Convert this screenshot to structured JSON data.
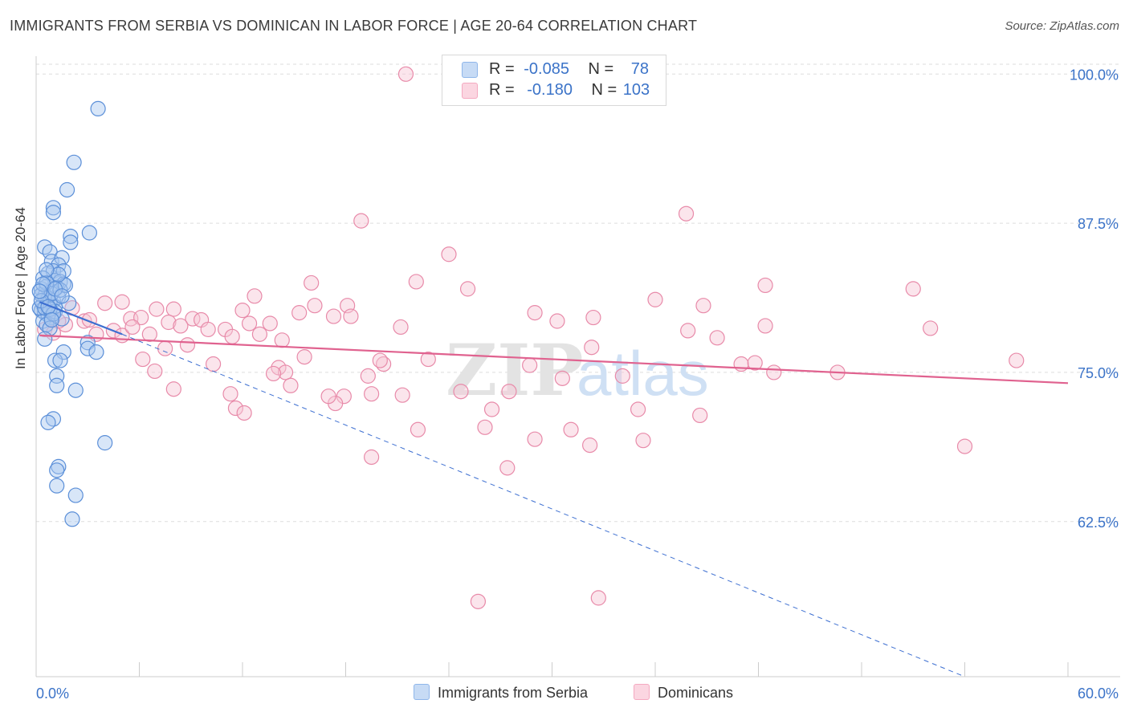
{
  "title": "IMMIGRANTS FROM SERBIA VS DOMINICAN IN LABOR FORCE | AGE 20-64 CORRELATION CHART",
  "source": "Source: ZipAtlas.com",
  "watermark": {
    "zip": "ZIP",
    "atlas": "atlas"
  },
  "legend": {
    "rows": [
      {
        "r_label": "R =",
        "r_value": "-0.085",
        "n_label": "N =",
        "n_value": "78",
        "color": "#8fb6ea"
      },
      {
        "r_label": "R =",
        "r_value": "-0.180",
        "n_label": "N =",
        "n_value": "103",
        "color": "#f4a9c0"
      }
    ]
  },
  "bottom_legend": {
    "serbia": "Immigrants from Serbia",
    "dominicans": "Dominicans"
  },
  "colors": {
    "serbia_fill": "#a9c8f0",
    "serbia_stroke": "#5b8fd8",
    "serbia_line": "#3d6fd1",
    "dominican_fill": "#f7c5d5",
    "dominican_stroke": "#e88aa9",
    "dominican_line": "#e0628f",
    "axis_label": "#3b73c8",
    "grid": "#dddddd"
  },
  "chart_data": {
    "type": "scatter",
    "title": "IMMIGRANTS FROM SERBIA VS DOMINICAN IN LABOR FORCE | AGE 20-64 CORRELATION CHART",
    "xlabel": "",
    "ylabel": "In Labor Force | Age 20-64",
    "xlim": [
      0,
      60
    ],
    "ylim": [
      49.5,
      101.5
    ],
    "x_tick_labels": [
      "0.0%",
      "60.0%"
    ],
    "y_ticks": [
      62.5,
      75.0,
      87.5,
      100.0
    ],
    "y_tick_labels": [
      "62.5%",
      "75.0%",
      "87.5%",
      "100.0%"
    ],
    "series": [
      {
        "name": "Immigrants from Serbia",
        "R": -0.085,
        "N": 78,
        "trend_solid": [
          [
            0.2,
            80.9
          ],
          [
            5.0,
            78.2
          ]
        ],
        "trend_dashed": [
          [
            5.0,
            78.2
          ],
          [
            54.0,
            49.5
          ]
        ],
        "points": [
          [
            3.6,
            97.1
          ],
          [
            2.2,
            92.6
          ],
          [
            1.8,
            90.3
          ],
          [
            1.0,
            88.8
          ],
          [
            1.0,
            88.4
          ],
          [
            3.1,
            86.7
          ],
          [
            2.0,
            86.4
          ],
          [
            2.0,
            85.9
          ],
          [
            0.5,
            85.5
          ],
          [
            0.8,
            85.1
          ],
          [
            0.9,
            84.3
          ],
          [
            1.5,
            84.6
          ],
          [
            1.3,
            84.0
          ],
          [
            0.7,
            83.3
          ],
          [
            1.0,
            83.5
          ],
          [
            1.6,
            83.5
          ],
          [
            0.4,
            82.9
          ],
          [
            1.1,
            82.7
          ],
          [
            1.4,
            82.6
          ],
          [
            1.6,
            82.4
          ],
          [
            0.3,
            82.0
          ],
          [
            0.6,
            82.2
          ],
          [
            0.9,
            81.8
          ],
          [
            1.2,
            82.1
          ],
          [
            0.5,
            81.4
          ],
          [
            0.7,
            81.2
          ],
          [
            1.0,
            81.0
          ],
          [
            1.3,
            81.3
          ],
          [
            0.4,
            80.7
          ],
          [
            0.6,
            80.6
          ],
          [
            0.8,
            80.9
          ],
          [
            1.1,
            80.5
          ],
          [
            0.3,
            80.2
          ],
          [
            0.5,
            80.0
          ],
          [
            0.7,
            79.8
          ],
          [
            0.9,
            79.6
          ],
          [
            1.1,
            80.1
          ],
          [
            0.4,
            79.3
          ],
          [
            0.6,
            79.0
          ],
          [
            0.8,
            78.7
          ],
          [
            1.9,
            80.8
          ],
          [
            1.5,
            79.5
          ],
          [
            0.5,
            77.8
          ],
          [
            3.0,
            77.5
          ],
          [
            3.0,
            77.0
          ],
          [
            1.6,
            76.7
          ],
          [
            3.5,
            76.7
          ],
          [
            1.1,
            76.0
          ],
          [
            1.4,
            76.0
          ],
          [
            1.2,
            74.7
          ],
          [
            1.2,
            73.9
          ],
          [
            2.3,
            73.5
          ],
          [
            1.0,
            71.1
          ],
          [
            0.7,
            70.8
          ],
          [
            4.0,
            69.1
          ],
          [
            1.3,
            67.1
          ],
          [
            1.2,
            66.8
          ],
          [
            1.2,
            65.5
          ],
          [
            2.3,
            64.7
          ],
          [
            2.1,
            62.7
          ],
          [
            0.3,
            81.5
          ],
          [
            0.6,
            82.5
          ],
          [
            0.2,
            80.4
          ],
          [
            0.9,
            81.6
          ],
          [
            1.4,
            81.9
          ],
          [
            0.5,
            80.4
          ],
          [
            1.7,
            82.3
          ],
          [
            0.8,
            80.3
          ],
          [
            1.0,
            79.9
          ],
          [
            0.4,
            82.4
          ],
          [
            1.3,
            83.2
          ],
          [
            0.6,
            83.6
          ],
          [
            1.1,
            82.0
          ],
          [
            0.3,
            81.0
          ],
          [
            0.7,
            80.5
          ],
          [
            1.5,
            81.4
          ],
          [
            0.9,
            79.4
          ],
          [
            0.2,
            81.8
          ]
        ]
      },
      {
        "name": "Dominicans",
        "R": -0.18,
        "N": 103,
        "trend_solid": [
          [
            0.2,
            78.1
          ],
          [
            60.0,
            74.1
          ]
        ],
        "points": [
          [
            21.5,
            100.0
          ],
          [
            37.8,
            88.3
          ],
          [
            18.9,
            87.7
          ],
          [
            24.0,
            84.9
          ],
          [
            16.0,
            82.5
          ],
          [
            22.1,
            82.6
          ],
          [
            25.1,
            82.0
          ],
          [
            42.4,
            82.3
          ],
          [
            51.0,
            82.0
          ],
          [
            12.7,
            81.4
          ],
          [
            36.0,
            81.1
          ],
          [
            2.1,
            80.4
          ],
          [
            4.0,
            80.8
          ],
          [
            5.0,
            80.9
          ],
          [
            7.0,
            80.3
          ],
          [
            8.0,
            80.3
          ],
          [
            15.3,
            80.0
          ],
          [
            16.2,
            80.6
          ],
          [
            17.3,
            79.7
          ],
          [
            18.1,
            80.6
          ],
          [
            18.3,
            79.7
          ],
          [
            29.0,
            80.0
          ],
          [
            38.8,
            80.6
          ],
          [
            2.8,
            79.3
          ],
          [
            5.5,
            79.5
          ],
          [
            6.1,
            79.6
          ],
          [
            7.7,
            79.2
          ],
          [
            9.1,
            79.5
          ],
          [
            9.6,
            79.4
          ],
          [
            12.4,
            79.1
          ],
          [
            13.6,
            79.1
          ],
          [
            21.2,
            78.8
          ],
          [
            30.3,
            79.3
          ],
          [
            32.4,
            79.6
          ],
          [
            42.4,
            78.9
          ],
          [
            52.0,
            78.7
          ],
          [
            0.5,
            78.6
          ],
          [
            1.7,
            79.0
          ],
          [
            3.5,
            78.2
          ],
          [
            4.5,
            78.5
          ],
          [
            5.0,
            78.1
          ],
          [
            5.6,
            78.8
          ],
          [
            8.4,
            78.9
          ],
          [
            10.0,
            78.6
          ],
          [
            11.0,
            78.6
          ],
          [
            11.4,
            78.0
          ],
          [
            13.0,
            78.2
          ],
          [
            14.3,
            77.7
          ],
          [
            7.5,
            77.0
          ],
          [
            8.8,
            77.3
          ],
          [
            15.6,
            76.3
          ],
          [
            32.3,
            77.1
          ],
          [
            39.6,
            77.9
          ],
          [
            37.9,
            78.5
          ],
          [
            6.2,
            76.1
          ],
          [
            10.3,
            75.7
          ],
          [
            14.1,
            75.4
          ],
          [
            14.5,
            75.0
          ],
          [
            20.2,
            75.7
          ],
          [
            22.8,
            76.1
          ],
          [
            28.7,
            75.6
          ],
          [
            41.0,
            75.7
          ],
          [
            41.8,
            75.8
          ],
          [
            42.9,
            75.0
          ],
          [
            46.6,
            75.0
          ],
          [
            57.0,
            76.0
          ],
          [
            6.9,
            75.1
          ],
          [
            13.8,
            74.9
          ],
          [
            19.3,
            74.7
          ],
          [
            30.6,
            74.5
          ],
          [
            34.1,
            74.7
          ],
          [
            8.0,
            73.6
          ],
          [
            11.3,
            73.2
          ],
          [
            14.8,
            73.9
          ],
          [
            17.9,
            73.0
          ],
          [
            19.5,
            73.2
          ],
          [
            21.3,
            73.1
          ],
          [
            24.7,
            73.4
          ],
          [
            27.5,
            73.4
          ],
          [
            17.4,
            72.4
          ],
          [
            17.0,
            73.0
          ],
          [
            11.6,
            72.0
          ],
          [
            12.1,
            71.6
          ],
          [
            26.5,
            71.9
          ],
          [
            35.0,
            71.9
          ],
          [
            38.6,
            71.4
          ],
          [
            22.2,
            70.2
          ],
          [
            26.1,
            70.4
          ],
          [
            29.0,
            69.4
          ],
          [
            31.1,
            70.2
          ],
          [
            32.2,
            68.9
          ],
          [
            35.3,
            69.3
          ],
          [
            54.0,
            68.8
          ],
          [
            19.5,
            67.9
          ],
          [
            27.4,
            67.0
          ],
          [
            25.7,
            55.8
          ],
          [
            32.7,
            56.1
          ],
          [
            1.0,
            78.3
          ],
          [
            6.6,
            78.2
          ],
          [
            3.1,
            79.4
          ],
          [
            12.0,
            80.2
          ],
          [
            20.0,
            76.0
          ],
          [
            1.3,
            79.3
          ]
        ]
      }
    ]
  }
}
